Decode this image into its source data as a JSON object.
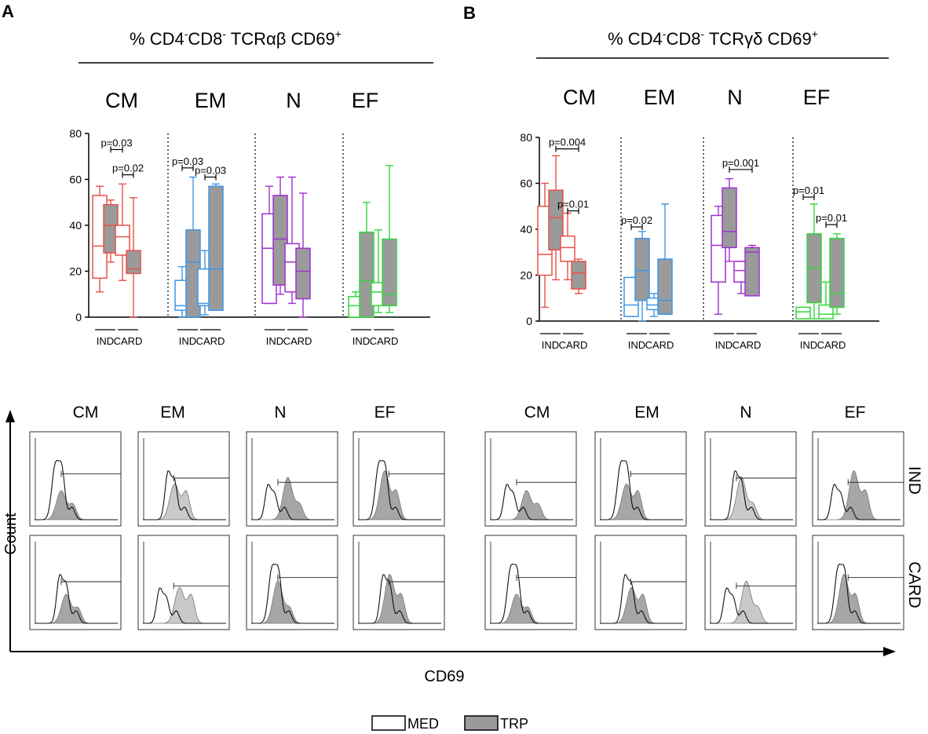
{
  "chart_data": [
    {
      "panel": "A",
      "type": "box",
      "title_parts": [
        "% CD4",
        "-",
        "CD8",
        "-",
        " TCRαβ CD69",
        "+"
      ],
      "groups": [
        "CM",
        "EM",
        "N",
        "EF"
      ],
      "subgroups": [
        "IND",
        "CARD"
      ],
      "colors": [
        "#e8504a",
        "#3d96e6",
        "#a030d0",
        "#34d63c"
      ],
      "ylim": [
        0,
        80
      ],
      "yticks": [
        "0",
        "20",
        "40",
        "60",
        "80"
      ],
      "boxes": [
        [
          [
            {
              "treat": "MED",
              "min": 11,
              "q1": 17,
              "med": 31,
              "q3": 53,
              "max": 57
            },
            {
              "treat": "TRP",
              "min": 24,
              "q1": 28,
              "med": 40,
              "q3": 49,
              "max": 51
            }
          ],
          [
            {
              "treat": "MED",
              "min": 16,
              "q1": 27,
              "med": 35,
              "q3": 40,
              "max": 58
            },
            {
              "treat": "TRP",
              "min": 0,
              "q1": 19,
              "med": 21,
              "q3": 29,
              "max": 52
            }
          ]
        ],
        [
          [
            {
              "treat": "MED",
              "min": 0,
              "q1": 3,
              "med": 5,
              "q3": 16,
              "max": 22
            },
            {
              "treat": "TRP",
              "min": 0,
              "q1": 0,
              "med": 24,
              "q3": 38,
              "max": 61
            }
          ],
          [
            {
              "treat": "MED",
              "min": 1,
              "q1": 5,
              "med": 6,
              "q3": 21,
              "max": 29
            },
            {
              "treat": "TRP",
              "min": 3,
              "q1": 3,
              "med": 21,
              "q3": 57,
              "max": 58
            }
          ]
        ],
        [
          [
            {
              "treat": "MED",
              "min": 6,
              "q1": 6,
              "med": 30,
              "q3": 45,
              "max": 57
            },
            {
              "treat": "TRP",
              "min": 10,
              "q1": 14,
              "med": 34,
              "q3": 53,
              "max": 61
            }
          ],
          [
            {
              "treat": "MED",
              "min": 6,
              "q1": 11,
              "med": 24,
              "q3": 32,
              "max": 61
            },
            {
              "treat": "TRP",
              "min": 0,
              "q1": 8,
              "med": 20,
              "q3": 30,
              "max": 54
            }
          ]
        ],
        [
          [
            {
              "treat": "MED",
              "min": 0,
              "q1": 0,
              "med": 5,
              "q3": 9,
              "max": 11
            },
            {
              "treat": "TRP",
              "min": 0,
              "q1": 0,
              "med": 16,
              "q3": 37,
              "max": 50
            }
          ],
          [
            {
              "treat": "MED",
              "min": 2,
              "q1": 5,
              "med": 11,
              "q3": 15,
              "max": 38
            },
            {
              "treat": "TRP",
              "min": 2,
              "q1": 5,
              "med": 10,
              "q3": 34,
              "max": 66
            }
          ]
        ]
      ],
      "pvalues": [
        {
          "label": "p=0.03",
          "group": 0,
          "from": "IND-TRP",
          "to": "CARD-MED",
          "y": 73
        },
        {
          "label": "p=0.02",
          "group": 0,
          "from": "CARD-MED",
          "to": "CARD-TRP",
          "y": 62
        },
        {
          "label": "p=0.03",
          "group": 1,
          "from": "IND-MED",
          "to": "IND-TRP",
          "y": 65
        },
        {
          "label": "p=0.03",
          "group": 1,
          "from": "CARD-MED",
          "to": "CARD-TRP",
          "y": 61
        }
      ]
    },
    {
      "panel": "B",
      "type": "box",
      "title_parts": [
        "% CD4",
        "-",
        "CD8",
        "-",
        " TCRγδ CD69",
        "+"
      ],
      "groups": [
        "CM",
        "EM",
        "N",
        "EF"
      ],
      "subgroups": [
        "IND",
        "CARD"
      ],
      "colors": [
        "#e8504a",
        "#3d96e6",
        "#a030d0",
        "#34d63c"
      ],
      "ylim": [
        0,
        80
      ],
      "yticks": [
        "0",
        "20",
        "40",
        "60",
        "80"
      ],
      "boxes": [
        [
          [
            {
              "treat": "MED",
              "min": 6,
              "q1": 20,
              "med": 29,
              "q3": 50,
              "max": 60
            },
            {
              "treat": "TRP",
              "min": 18,
              "q1": 31,
              "med": 45,
              "q3": 57,
              "max": 72
            }
          ],
          [
            {
              "treat": "MED",
              "min": 18,
              "q1": 26,
              "med": 32,
              "q3": 37,
              "max": 47
            },
            {
              "treat": "TRP",
              "min": 12,
              "q1": 14,
              "med": 21,
              "q3": 26,
              "max": 27
            }
          ]
        ],
        [
          [
            {
              "treat": "MED",
              "min": 2,
              "q1": 2,
              "med": 7,
              "q3": 19,
              "max": 19
            },
            {
              "treat": "TRP",
              "min": 0,
              "q1": 9,
              "med": 22,
              "q3": 36,
              "max": 39
            }
          ],
          [
            {
              "treat": "MED",
              "min": 2,
              "q1": 5,
              "med": 7,
              "q3": 10,
              "max": 12
            },
            {
              "treat": "TRP",
              "min": 3,
              "q1": 3,
              "med": 9,
              "q3": 27,
              "max": 51
            }
          ]
        ],
        [
          [
            {
              "treat": "MED",
              "min": 3,
              "q1": 17,
              "med": 33,
              "q3": 46,
              "max": 50
            },
            {
              "treat": "TRP",
              "min": 26,
              "q1": 32,
              "med": 39,
              "q3": 58,
              "max": 62
            }
          ],
          [
            {
              "treat": "MED",
              "min": 12,
              "q1": 17,
              "med": 22,
              "q3": 26,
              "max": 26
            },
            {
              "treat": "TRP",
              "min": 11,
              "q1": 11,
              "med": 30,
              "q3": 32,
              "max": 33
            }
          ]
        ],
        [
          [
            {
              "treat": "MED",
              "min": 1,
              "q1": 1,
              "med": 4,
              "q3": 6,
              "max": 6
            },
            {
              "treat": "TRP",
              "min": 1,
              "q1": 8,
              "med": 23,
              "q3": 38,
              "max": 51
            }
          ],
          [
            {
              "treat": "MED",
              "min": 1,
              "q1": 1,
              "med": 3,
              "q3": 7,
              "max": 17
            },
            {
              "treat": "TRP",
              "min": 3,
              "q1": 6,
              "med": 12,
              "q3": 36,
              "max": 38
            }
          ]
        ]
      ],
      "pvalues": [
        {
          "label": "p=0.004",
          "group": 0,
          "from": "IND-TRP",
          "to": "CARD-TRP",
          "y": 75
        },
        {
          "label": "p=0.01",
          "group": 0,
          "from": "CARD-MED",
          "to": "CARD-TRP",
          "y": 48
        },
        {
          "label": "p=0.02",
          "group": 1,
          "from": "IND-MED",
          "to": "IND-TRP",
          "y": 41
        },
        {
          "label": "p=0.001",
          "group": 2,
          "from": "IND-TRP",
          "to": "CARD-TRP",
          "y": 66
        },
        {
          "label": "p=0.01",
          "group": 3,
          "from": "IND-MED",
          "to": "IND-TRP",
          "y": 54
        },
        {
          "label": "p=0.01",
          "group": 3,
          "from": "CARD-MED",
          "to": "CARD-TRP",
          "y": 42
        }
      ]
    }
  ],
  "panel_labels": {
    "a": "A",
    "b": "B"
  },
  "histograms": {
    "type": "histogram-grid",
    "columns_A": [
      "CM",
      "EM",
      "N",
      "EF"
    ],
    "columns_B": [
      "CM",
      "EM",
      "N",
      "EF"
    ],
    "row_labels": [
      "IND",
      "CARD"
    ],
    "x_axis_label": "CD69",
    "y_axis_label": "Count"
  },
  "legend": {
    "med": "MED",
    "trp": "TRP"
  }
}
